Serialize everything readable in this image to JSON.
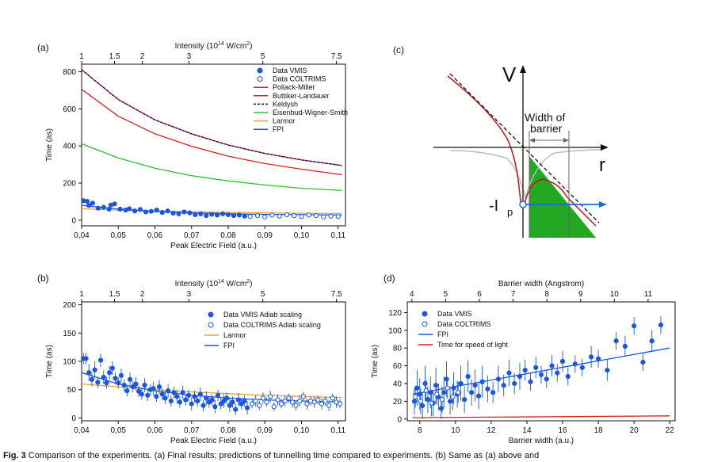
{
  "caption": {
    "label": "Fig. 3",
    "text": "Comparison of the experiments. (a) Final results; predictions of tunnelling time compared to experiments. (b) Same as (a) above and"
  },
  "chart_data": [
    {
      "panel": "(a)",
      "type": "scatter",
      "xlabel": "Peak Electric Field (a.u.)",
      "ylabel": "Time (as)",
      "top_axis_label": "Intensity (10^14 W/cm^2)",
      "top_axis_label_parts": [
        "Intensity (10",
        "14",
        " W/cm",
        "2",
        ")"
      ],
      "xlim": [
        0.04,
        0.112
      ],
      "ylim": [
        -30,
        840
      ],
      "xticks": [
        0.04,
        0.05,
        0.06,
        0.07,
        0.08,
        0.09,
        0.1,
        0.11
      ],
      "xtick_labels": [
        "0,04",
        "0,05",
        "0,06",
        "0,07",
        "0,08",
        "0,09",
        "0,10",
        "0,11"
      ],
      "yticks": [
        0,
        200,
        400,
        600,
        800
      ],
      "ytick_labels": [
        "0",
        "200",
        "400",
        "600",
        "800"
      ],
      "top_ticks": [
        1,
        1.5,
        2,
        3,
        5,
        7.5
      ],
      "top_tick_labels": [
        "1",
        "1.5",
        "2",
        "3",
        "5",
        "7.5"
      ],
      "legend_position": "top-right",
      "series": [
        {
          "name": "Data VMIS",
          "kind": "points",
          "color": "#1a56e0",
          "filled": true,
          "x": [
            0.0405,
            0.0415,
            0.042,
            0.043,
            0.0445,
            0.046,
            0.0475,
            0.048,
            0.049,
            0.0505,
            0.052,
            0.053,
            0.0545,
            0.056,
            0.0575,
            0.059,
            0.0605,
            0.062,
            0.0635,
            0.065,
            0.0665,
            0.068,
            0.0695,
            0.071,
            0.0725,
            0.074,
            0.0755,
            0.077,
            0.0785,
            0.08,
            0.0815,
            0.083,
            0.0845
          ],
          "y": [
            105,
            102,
            80,
            92,
            65,
            70,
            60,
            82,
            88,
            60,
            55,
            62,
            50,
            58,
            45,
            48,
            55,
            42,
            50,
            38,
            35,
            45,
            40,
            30,
            35,
            25,
            32,
            28,
            35,
            30,
            25,
            28,
            22
          ]
        },
        {
          "name": "Data COLTRIMS",
          "kind": "points",
          "color": "#1a56e0",
          "filled": false,
          "x": [
            0.086,
            0.088,
            0.09,
            0.092,
            0.094,
            0.096,
            0.098,
            0.1,
            0.102,
            0.104,
            0.106,
            0.108,
            0.11
          ],
          "y": [
            20,
            25,
            18,
            28,
            22,
            30,
            25,
            20,
            28,
            25,
            18,
            22,
            20
          ]
        },
        {
          "name": "Pollack-Miller",
          "kind": "line",
          "color": "#c0149a",
          "dashed": false,
          "x": [
            0.04,
            0.05,
            0.06,
            0.07,
            0.08,
            0.09,
            0.1,
            0.111
          ],
          "y": [
            810,
            650,
            540,
            465,
            405,
            360,
            325,
            295
          ]
        },
        {
          "name": "Buttiker-Landauer",
          "kind": "line",
          "color": "#d62020",
          "dashed": false,
          "x": [
            0.04,
            0.05,
            0.06,
            0.07,
            0.08,
            0.09,
            0.1,
            0.111
          ],
          "y": [
            705,
            560,
            465,
            398,
            345,
            305,
            275,
            245
          ]
        },
        {
          "name": "Keldysh",
          "kind": "line",
          "color": "#111111",
          "dashed": true,
          "x": [
            0.04,
            0.05,
            0.06,
            0.07,
            0.08,
            0.09,
            0.1,
            0.111
          ],
          "y": [
            810,
            650,
            540,
            465,
            405,
            360,
            325,
            295
          ]
        },
        {
          "name": "Eisenbud-Wigner-Smith",
          "kind": "line",
          "color": "#2bbf2b",
          "dashed": false,
          "x": [
            0.04,
            0.05,
            0.06,
            0.07,
            0.08,
            0.09,
            0.1,
            0.111
          ],
          "y": [
            412,
            335,
            280,
            240,
            212,
            190,
            172,
            160
          ]
        },
        {
          "name": "Larmor",
          "kind": "line",
          "color": "#f0a030",
          "dashed": false,
          "x": [
            0.04,
            0.05,
            0.06,
            0.07,
            0.08,
            0.09,
            0.1,
            0.111
          ],
          "y": [
            62,
            55,
            50,
            45,
            42,
            40,
            38,
            36
          ]
        },
        {
          "name": "FPI",
          "kind": "line",
          "color": "#1a56e0",
          "dashed": false,
          "x": [
            0.04,
            0.05,
            0.06,
            0.07,
            0.08,
            0.09,
            0.1,
            0.111
          ],
          "y": [
            80,
            60,
            48,
            40,
            35,
            32,
            30,
            28
          ]
        }
      ]
    },
    {
      "panel": "(b)",
      "type": "scatter",
      "xlabel": "Peak Electric Field (a.u.)",
      "ylabel": "Time (as)",
      "top_axis_label": "Intensity (10^14 W/cm^2)",
      "top_axis_label_parts": [
        "Intensity (10",
        "14",
        " W/cm",
        "2",
        ")"
      ],
      "xlim": [
        0.04,
        0.112
      ],
      "ylim": [
        -5,
        205
      ],
      "xticks": [
        0.04,
        0.05,
        0.06,
        0.07,
        0.08,
        0.09,
        0.1,
        0.11
      ],
      "xtick_labels": [
        "0,04",
        "0,05",
        "0,06",
        "0,07",
        "0,08",
        "0,09",
        "0,10",
        "0,11"
      ],
      "yticks": [
        0,
        50,
        100,
        150,
        200
      ],
      "ytick_labels": [
        "0",
        "50",
        "100",
        "150",
        "200"
      ],
      "top_ticks": [
        1,
        1.5,
        2,
        3,
        5,
        7.5
      ],
      "top_tick_labels": [
        "1",
        "1.5",
        "2",
        "3",
        "5",
        "7.5"
      ],
      "legend_position": "top-right",
      "series": [
        {
          "name": "Data VMIS Adiab scaling",
          "kind": "points",
          "color": "#1a56e0",
          "filled": true,
          "x": [
            0.0405,
            0.0412,
            0.042,
            0.0428,
            0.0436,
            0.0444,
            0.0452,
            0.046,
            0.0468,
            0.0476,
            0.0484,
            0.0492,
            0.05,
            0.0508,
            0.0516,
            0.0524,
            0.0532,
            0.054,
            0.0548,
            0.0556,
            0.0564,
            0.0572,
            0.058,
            0.0588,
            0.0596,
            0.0604,
            0.0612,
            0.062,
            0.0628,
            0.0636,
            0.0644,
            0.0652,
            0.066,
            0.0668,
            0.0676,
            0.0684,
            0.0692,
            0.07,
            0.0708,
            0.0716,
            0.0724,
            0.0732,
            0.074,
            0.0748,
            0.0756,
            0.0764,
            0.0772,
            0.078,
            0.0788,
            0.0796,
            0.0804,
            0.0812,
            0.082,
            0.0828,
            0.0836,
            0.0844,
            0.0852
          ],
          "y": [
            105,
            105,
            80,
            68,
            85,
            63,
            102,
            72,
            62,
            80,
            88,
            70,
            62,
            75,
            58,
            48,
            68,
            55,
            60,
            47,
            42,
            58,
            40,
            50,
            52,
            38,
            55,
            42,
            35,
            48,
            30,
            45,
            38,
            28,
            45,
            32,
            40,
            25,
            38,
            30,
            42,
            22,
            35,
            28,
            32,
            20,
            40,
            25,
            30,
            35,
            22,
            28,
            15,
            32,
            25,
            30,
            18
          ],
          "err": [
            10,
            10,
            15,
            12,
            15,
            10,
            12,
            12,
            10,
            12,
            12,
            10,
            10,
            12,
            10,
            10,
            12,
            10,
            12,
            10,
            10,
            12,
            10,
            10,
            12,
            10,
            12,
            10,
            10,
            12,
            10,
            10,
            12,
            10,
            12,
            10,
            10,
            12,
            10,
            10,
            12,
            10,
            12,
            10,
            10,
            12,
            10,
            10,
            12,
            10,
            12,
            10,
            10,
            12,
            10,
            10,
            12
          ]
        },
        {
          "name": "Data COLTRIMS Adiab scaling",
          "kind": "points",
          "color": "#1a56e0",
          "filled": false,
          "x": [
            0.0865,
            0.0875,
            0.0885,
            0.0895,
            0.0905,
            0.0915,
            0.0925,
            0.0935,
            0.0945,
            0.0955,
            0.0965,
            0.0975,
            0.0985,
            0.0995,
            0.1005,
            0.1015,
            0.1025,
            0.1035,
            0.1045,
            0.1055,
            0.1065,
            0.1075,
            0.1085,
            0.1095,
            0.1105
          ],
          "y": [
            25,
            30,
            22,
            35,
            28,
            38,
            20,
            32,
            25,
            30,
            35,
            28,
            22,
            30,
            38,
            25,
            30,
            28,
            32,
            25,
            30,
            22,
            35,
            28,
            25
          ],
          "err": [
            8,
            10,
            8,
            10,
            8,
            10,
            8,
            10,
            8,
            10,
            8,
            10,
            8,
            10,
            8,
            10,
            8,
            10,
            8,
            10,
            8,
            10,
            8,
            10,
            8
          ]
        },
        {
          "name": "Larmor",
          "kind": "line",
          "color": "#f0a030",
          "dashed": false,
          "x": [
            0.04,
            0.05,
            0.06,
            0.07,
            0.08,
            0.09,
            0.1,
            0.111
          ],
          "y": [
            60,
            55,
            50,
            46,
            43,
            40,
            38,
            36
          ]
        },
        {
          "name": "FPI",
          "kind": "line",
          "color": "#1a56e0",
          "dashed": false,
          "x": [
            0.04,
            0.05,
            0.06,
            0.07,
            0.08,
            0.09,
            0.1,
            0.111
          ],
          "y": [
            80,
            60,
            48,
            40,
            35,
            32,
            30,
            28
          ]
        }
      ]
    },
    {
      "panel": "(d)",
      "type": "scatter",
      "xlabel": "Barrier width (a.u.)",
      "ylabel": "Time (as)",
      "top_axis_label": "Barrier width (Angstrom)",
      "top_axis_label_parts": [
        "Barrier width (Angstrom)"
      ],
      "xlim": [
        7.3,
        22.3
      ],
      "ylim": [
        -2,
        132
      ],
      "xticks": [
        8,
        10,
        12,
        14,
        16,
        18,
        20,
        22
      ],
      "xtick_labels": [
        "8",
        "10",
        "12",
        "14",
        "16",
        "18",
        "20",
        "22"
      ],
      "yticks": [
        0,
        20,
        40,
        60,
        80,
        100,
        120
      ],
      "ytick_labels": [
        "0",
        "20",
        "40",
        "60",
        "80",
        "100",
        "120"
      ],
      "top_ticks": [
        4,
        5,
        6,
        7,
        8,
        9,
        10,
        11
      ],
      "top_tick_labels": [
        "4",
        "5",
        "6",
        "7",
        "8",
        "9",
        "10",
        "11"
      ],
      "legend_position": "top-left",
      "series": [
        {
          "name": "Data VMIS",
          "kind": "points",
          "color": "#1a56e0",
          "filled": true,
          "x": [
            7.7,
            7.85,
            8.0,
            8.15,
            8.3,
            8.45,
            8.6,
            8.75,
            8.9,
            9.05,
            9.2,
            9.35,
            9.5,
            9.7,
            9.9,
            10.1,
            10.3,
            10.5,
            10.7,
            10.9,
            11.1,
            11.3,
            11.5,
            11.8,
            12.1,
            12.4,
            12.7,
            13.0,
            13.3,
            13.6,
            13.9,
            14.2,
            14.5,
            14.8,
            15.1,
            15.4,
            15.7,
            16.0,
            16.3,
            16.7,
            17.1,
            17.6,
            18.0,
            18.5,
            19.0,
            19.5,
            20.0,
            20.5,
            21.0,
            21.5
          ],
          "y": [
            20,
            35,
            28,
            15,
            40,
            22,
            30,
            18,
            38,
            25,
            12,
            30,
            45,
            20,
            35,
            28,
            40,
            22,
            48,
            30,
            38,
            26,
            42,
            34,
            30,
            45,
            38,
            52,
            40,
            48,
            55,
            42,
            58,
            50,
            45,
            60,
            52,
            65,
            48,
            62,
            58,
            70,
            68,
            55,
            88,
            82,
            105,
            64,
            88,
            106
          ],
          "err": [
            15,
            20,
            18,
            15,
            20,
            15,
            18,
            15,
            20,
            15,
            12,
            18,
            20,
            15,
            18,
            15,
            20,
            15,
            18,
            15,
            18,
            15,
            18,
            15,
            12,
            15,
            12,
            15,
            12,
            15,
            12,
            10,
            12,
            10,
            10,
            12,
            10,
            12,
            10,
            10,
            10,
            12,
            10,
            12,
            10,
            12,
            10,
            10,
            12,
            10
          ]
        },
        {
          "name": "Data COLTRIMS",
          "kind": "points",
          "color": "#1a56e0",
          "filled": false,
          "x": [
            7.75,
            8.05,
            8.35,
            8.65,
            8.95,
            9.25,
            9.55,
            9.85,
            10.15
          ],
          "y": [
            25,
            20,
            32,
            18,
            28,
            22,
            35,
            25,
            30
          ],
          "err": [
            12,
            15,
            12,
            15,
            12,
            15,
            12,
            15,
            12
          ]
        },
        {
          "name": "FPI",
          "kind": "line",
          "color": "#1a56e0",
          "dashed": false,
          "x": [
            7.6,
            22.0
          ],
          "y": [
            28,
            80
          ]
        },
        {
          "name": "Time for speed of light",
          "kind": "line",
          "color": "#d62020",
          "dashed": false,
          "x": [
            7.6,
            22.0
          ],
          "y": [
            1.5,
            3.5
          ]
        }
      ]
    }
  ],
  "schematic": {
    "panel": "(c)",
    "v_label": "V",
    "r_label": "r",
    "ip_label": "-I",
    "ip_sub": "p",
    "width_label_1": "Width of",
    "width_label_2": "barrier"
  }
}
